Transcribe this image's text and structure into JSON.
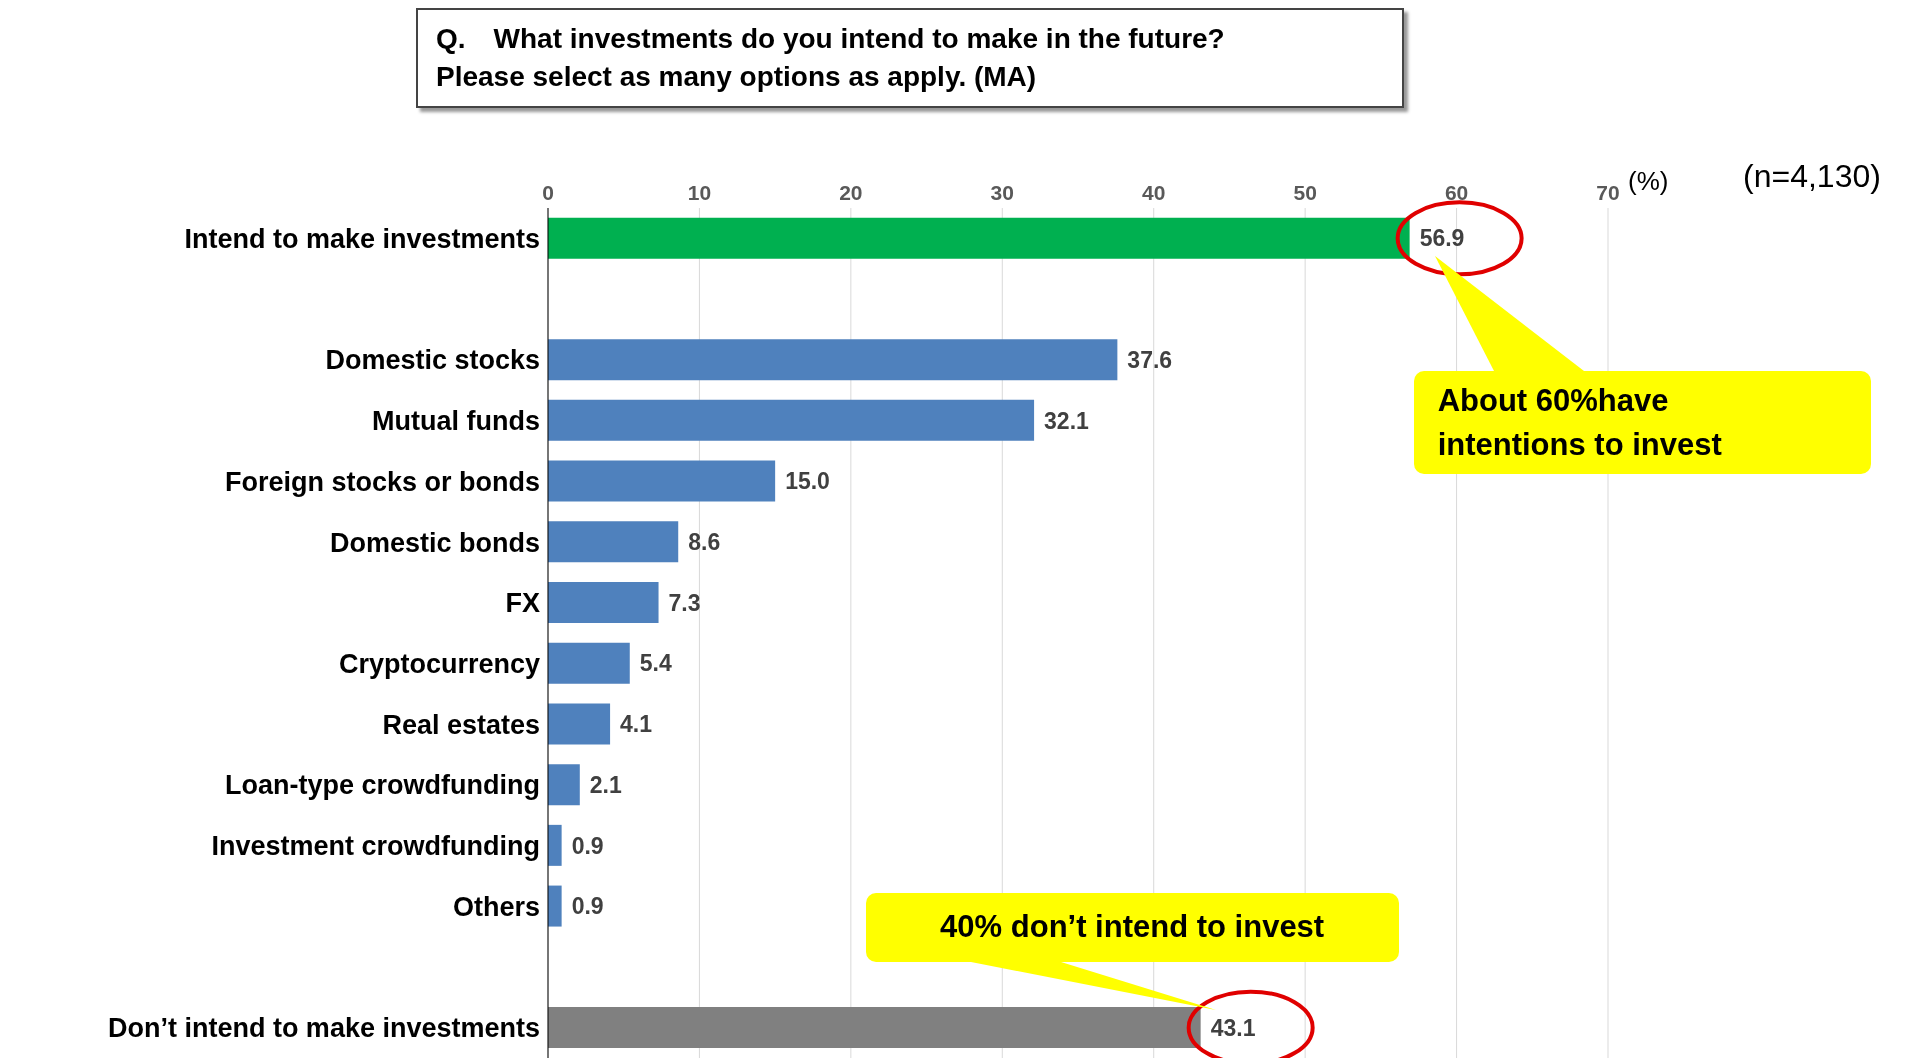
{
  "chart_data": {
    "type": "bar",
    "orientation": "horizontal",
    "title": "Q.　What investments do you intend to make in the future?\nPlease select as many options as apply. (MA)",
    "xlabel": "(%)",
    "categories": [
      "Intend to make investments",
      null,
      "Domestic stocks",
      "Mutual funds",
      "Foreign stocks or bonds",
      "Domestic bonds",
      "FX",
      "Cryptocurrency",
      "Real estates",
      "Loan-type crowdfunding",
      "Investment crowdfunding",
      "Others",
      null,
      "Don’t intend to make investments"
    ],
    "values": [
      56.9,
      null,
      37.6,
      32.1,
      15.0,
      8.6,
      7.3,
      5.4,
      4.1,
      2.1,
      0.9,
      0.9,
      null,
      43.1
    ],
    "value_labels": [
      "56.9",
      null,
      "37.6",
      "32.1",
      "15.0",
      "8.6",
      "7.3",
      "5.4",
      "4.1",
      "2.1",
      "0.9",
      "0.9",
      null,
      "43.1"
    ],
    "colors": [
      "#00b050",
      null,
      "#4f81bd",
      "#4f81bd",
      "#4f81bd",
      "#4f81bd",
      "#4f81bd",
      "#4f81bd",
      "#4f81bd",
      "#4f81bd",
      "#4f81bd",
      "#4f81bd",
      null,
      "#808080"
    ],
    "xlim": [
      0,
      70
    ],
    "xticks": [
      0,
      10,
      20,
      30,
      40,
      50,
      60,
      70
    ],
    "grid": "x",
    "annotations": [
      "(n=4,130)",
      "About 60%have intentions to invest",
      {
        "text": "40% don’t intend to invest",
        "x": 43.1,
        "y": "Don’t intend to make investments"
      }
    ]
  }
}
